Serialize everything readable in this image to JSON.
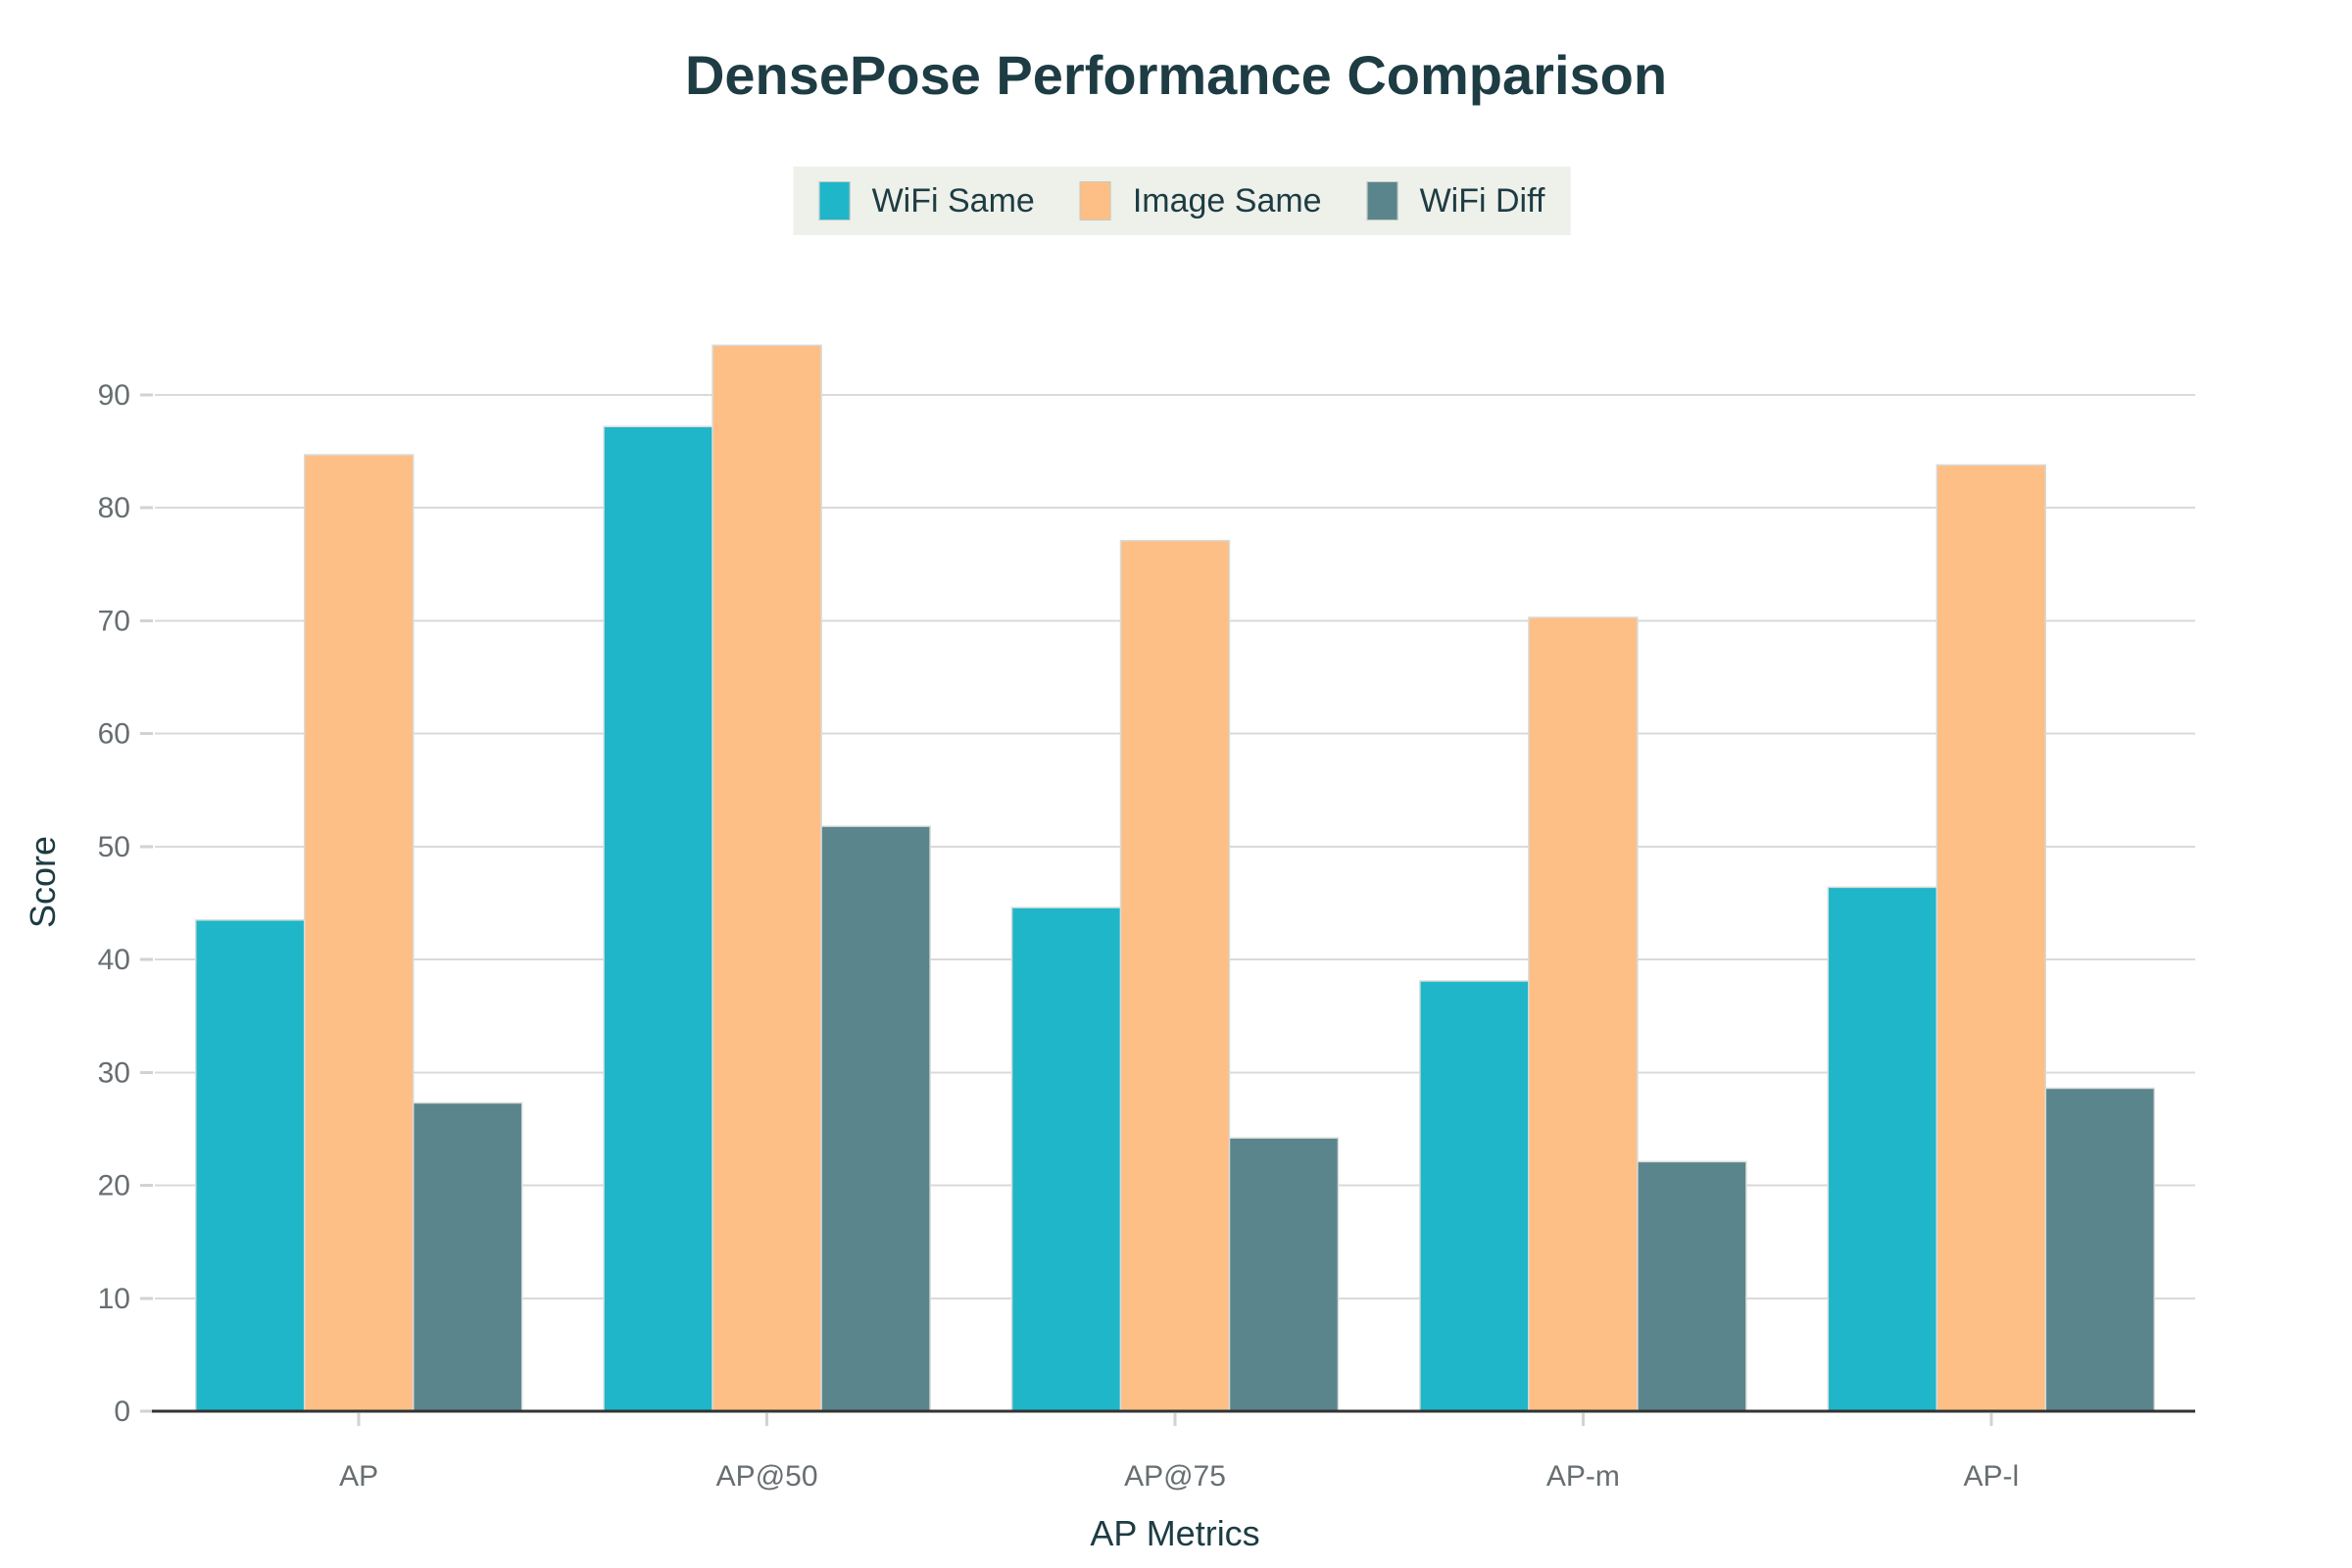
{
  "page": {
    "background": "#ffffff"
  },
  "chart_data": {
    "type": "bar",
    "title": "DensePose Performance Comparison",
    "xlabel": "AP Metrics",
    "ylabel": "Score",
    "categories": [
      "AP",
      "AP@50",
      "AP@75",
      "AP-m",
      "AP-l"
    ],
    "series": [
      {
        "name": "WiFi Same",
        "color": "#1fb6c9",
        "values": [
          43.5,
          87.2,
          44.6,
          38.1,
          46.4
        ]
      },
      {
        "name": "Image Same",
        "color": "#fdbf85",
        "values": [
          84.7,
          94.4,
          77.1,
          70.3,
          83.8
        ]
      },
      {
        "name": "WiFi Diff",
        "color": "#5b858c",
        "values": [
          27.3,
          51.8,
          24.2,
          22.1,
          28.6
        ]
      }
    ],
    "yticks": [
      0,
      10,
      20,
      30,
      40,
      50,
      60,
      70,
      80,
      90
    ],
    "ylim": [
      0,
      97
    ],
    "grid": "horizontal",
    "legend_position": "top-center"
  },
  "colors": {
    "title_text": "#1d3c43",
    "axis_title_text": "#1d3c43",
    "legend_text": "#1d3c43",
    "tick_text": "#676e71",
    "gridline": "#dadada",
    "axis_line": "#333333",
    "tick_mark": "#d2d2d2",
    "legend_bg": "#eef0ea",
    "bar_stroke": "#d8dbd9"
  }
}
